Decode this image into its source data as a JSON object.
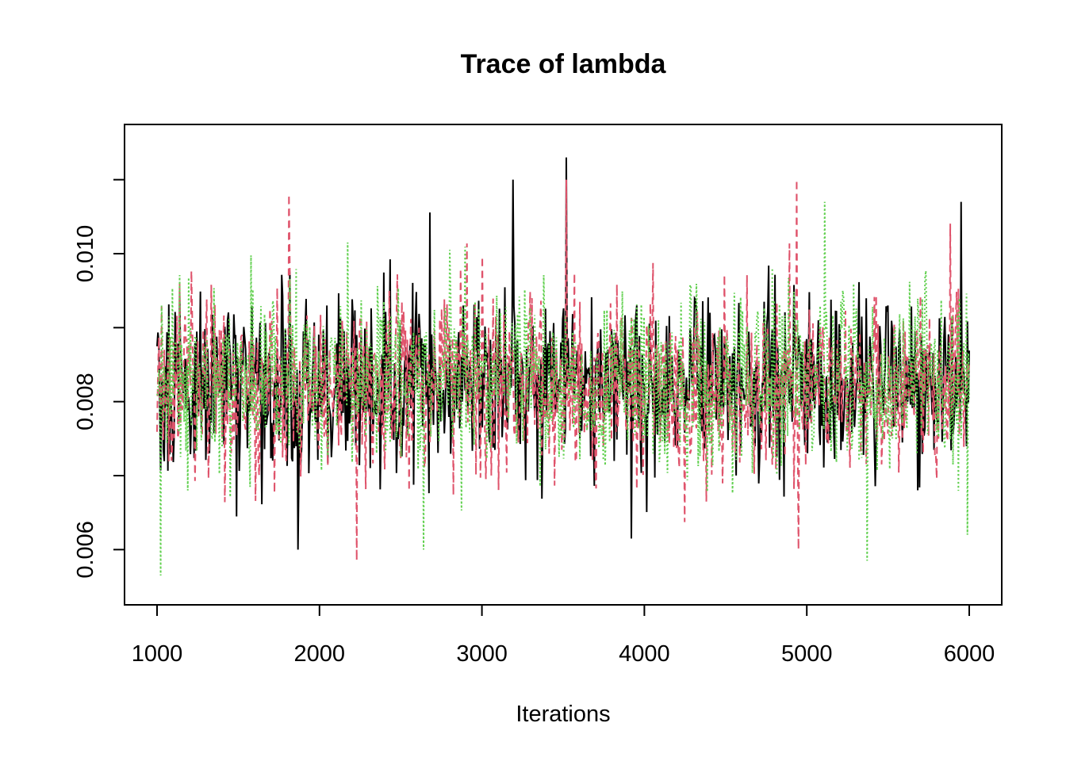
{
  "chart_data": {
    "type": "line",
    "title": "Trace of lambda",
    "xlabel": "Iterations",
    "ylabel": "",
    "xlim": [
      1000,
      6000
    ],
    "ylim": [
      0.0055,
      0.0115
    ],
    "x_ticks": [
      1000,
      2000,
      3000,
      4000,
      5000,
      6000
    ],
    "x_tick_labels": [
      "1000",
      "2000",
      "3000",
      "4000",
      "5000",
      "6000"
    ],
    "y_ticks": [
      0.006,
      0.007,
      0.008,
      0.009,
      0.01,
      0.011
    ],
    "y_tick_labels": [
      "0.006",
      "",
      "0.008",
      "",
      "0.010",
      ""
    ],
    "grid": false,
    "legend": "none",
    "series": [
      {
        "color": "#000000",
        "linestyle": "solid",
        "sampling": {
          "from": 1000,
          "to": 6000,
          "points": 900
        },
        "summary": {
          "center": 0.0082,
          "sd": 0.00062,
          "min": 0.006,
          "max": 0.0113
        },
        "notable_points": [
          {
            "x": 1870,
            "y": 0.006
          },
          {
            "x": 3190,
            "y": 0.011
          },
          {
            "x": 3520,
            "y": 0.0113
          },
          {
            "x": 3920,
            "y": 0.00615
          },
          {
            "x": 5950,
            "y": 0.0107
          }
        ]
      },
      {
        "color": "#DF536B",
        "linestyle": "dashed",
        "sampling": {
          "from": 1000,
          "to": 6000,
          "points": 900
        },
        "summary": {
          "center": 0.0082,
          "sd": 0.00062,
          "min": 0.0058,
          "max": 0.011
        },
        "notable_points": [
          {
            "x": 1810,
            "y": 0.0108
          },
          {
            "x": 2230,
            "y": 0.00585
          },
          {
            "x": 3520,
            "y": 0.011
          },
          {
            "x": 4940,
            "y": 0.011
          },
          {
            "x": 4950,
            "y": 0.006
          }
        ]
      },
      {
        "color": "#61D04F",
        "linestyle": "dotted",
        "sampling": {
          "from": 1000,
          "to": 6000,
          "points": 900
        },
        "summary": {
          "center": 0.0083,
          "sd": 0.0006,
          "min": 0.0057,
          "max": 0.0107
        },
        "notable_points": [
          {
            "x": 1020,
            "y": 0.00565
          },
          {
            "x": 2640,
            "y": 0.006
          },
          {
            "x": 5110,
            "y": 0.0107
          },
          {
            "x": 5370,
            "y": 0.00585
          },
          {
            "x": 5990,
            "y": 0.0062
          }
        ]
      }
    ]
  }
}
